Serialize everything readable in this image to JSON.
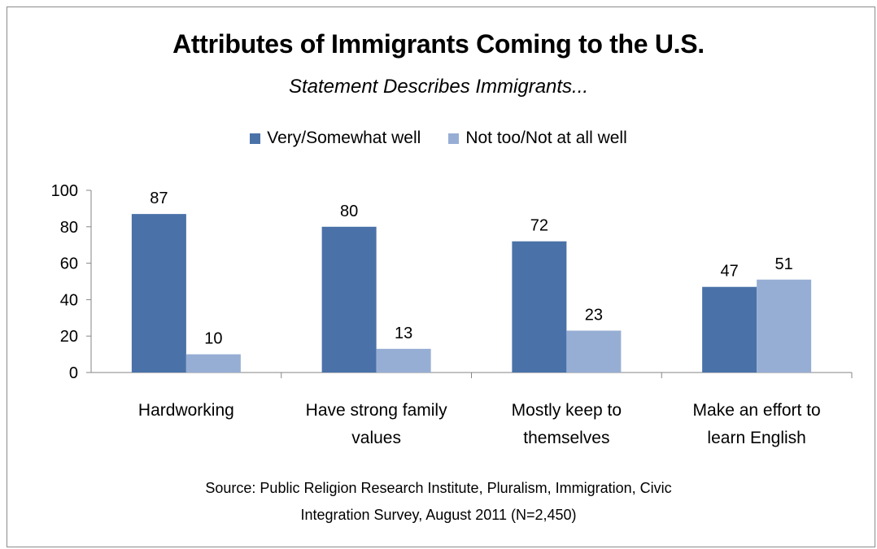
{
  "chart_data": {
    "type": "bar",
    "title": "Attributes of Immigrants Coming to the U.S.",
    "subtitle": "Statement Describes Immigrants...",
    "categories": [
      [
        "Hardworking"
      ],
      [
        "Have strong family",
        "values"
      ],
      [
        "Mostly keep to",
        "themselves"
      ],
      [
        "Make an effort to",
        "learn English"
      ]
    ],
    "series": [
      {
        "name": "Very/Somewhat well",
        "values": [
          87,
          80,
          72,
          47
        ],
        "color": "#4a72a8"
      },
      {
        "name": "Not too/Not at all well",
        "values": [
          10,
          13,
          23,
          51
        ],
        "color": "#97aed4"
      }
    ],
    "ylim": [
      0,
      100
    ],
    "yticks": [
      0,
      20,
      40,
      60,
      80,
      100
    ],
    "xlabel": "",
    "ylabel": "",
    "legend": "top",
    "grid": false,
    "data_labels": true
  },
  "source": {
    "line1": "Source: Public Religion Research Institute,  Pluralism, Immigration, Civic",
    "line2": "Integration Survey, August  2011 (N=2,450)"
  }
}
